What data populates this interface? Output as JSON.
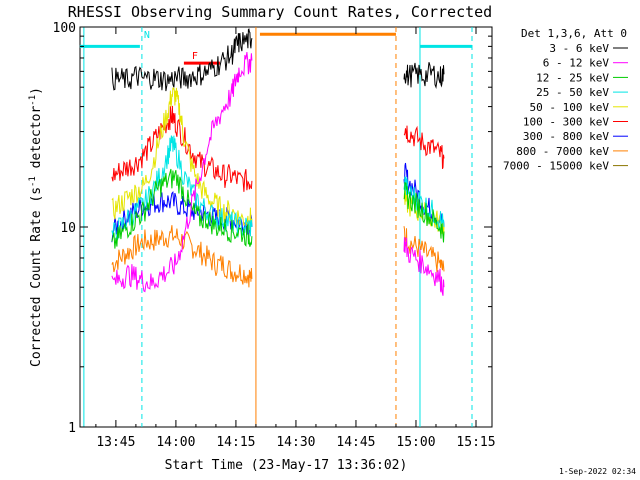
{
  "title": "RHESSI Observing Summary Count Rates, Corrected",
  "timestamp": "1-Sep-2022 02:34",
  "chart_data": {
    "type": "line",
    "title": "RHESSI Observing Summary Count Rates, Corrected",
    "xlabel": "Start Time (23-May-17 13:36:02)",
    "ylabel_parts": [
      "Corrected Count Rate (s",
      "-1",
      " detector",
      "-1",
      ")"
    ],
    "yscale": "log",
    "ylim": [
      1,
      100
    ],
    "xlim_minutes": [
      "13:36:02",
      "15:19:00"
    ],
    "xticks": [
      {
        "label": "13:45",
        "minutes": 45
      },
      {
        "label": "14:00",
        "minutes": 60
      },
      {
        "label": "14:15",
        "minutes": 75
      },
      {
        "label": "14:30",
        "minutes": 90
      },
      {
        "label": "14:45",
        "minutes": 105
      },
      {
        "label": "15:00",
        "minutes": 120
      },
      {
        "label": "15:15",
        "minutes": 135
      }
    ],
    "yticks": [
      {
        "label": "1",
        "value": 1
      },
      {
        "label": "10",
        "value": 10
      },
      {
        "label": "100",
        "value": 100
      }
    ],
    "legend_header": "Det 1,3,6, Att 0",
    "legend_position": "right, outside plot",
    "series": [
      {
        "name": "3 - 6 keV",
        "color": "#000000",
        "points": [
          [
            44,
            55
          ],
          [
            46,
            55
          ],
          [
            48,
            54
          ],
          [
            50,
            57
          ],
          [
            52,
            55
          ],
          [
            54,
            56
          ],
          [
            56,
            55
          ],
          [
            58,
            54
          ],
          [
            60,
            56
          ],
          [
            62,
            55
          ],
          [
            64,
            57
          ],
          [
            66,
            58
          ],
          [
            68,
            60
          ],
          [
            70,
            64
          ],
          [
            72,
            68
          ],
          [
            74,
            73
          ],
          [
            75,
            80
          ],
          [
            76,
            84
          ],
          [
            78,
            86
          ],
          [
            79,
            88
          ]
        ],
        "segments2": [
          [
            [
              117,
              60
            ],
            [
              118,
              57
            ],
            [
              120,
              58
            ],
            [
              122,
              57
            ],
            [
              124,
              59
            ],
            [
              126,
              56
            ],
            [
              127,
              58
            ]
          ]
        ]
      },
      {
        "name": "6 - 12 keV",
        "color": "#ff00ff",
        "points": [
          [
            44,
            5.2
          ],
          [
            46,
            5.5
          ],
          [
            48,
            5.8
          ],
          [
            50,
            5.6
          ],
          [
            52,
            5.4
          ],
          [
            54,
            5.2
          ],
          [
            56,
            5.7
          ],
          [
            58,
            6.0
          ],
          [
            60,
            6.5
          ],
          [
            62,
            9
          ],
          [
            64,
            13
          ],
          [
            66,
            18
          ],
          [
            68,
            26
          ],
          [
            70,
            33
          ],
          [
            72,
            40
          ],
          [
            74,
            46
          ],
          [
            75,
            55
          ],
          [
            76,
            62
          ],
          [
            78,
            66
          ],
          [
            79,
            68
          ]
        ],
        "segments2": [
          [
            [
              117,
              8.5
            ],
            [
              118,
              7.5
            ],
            [
              120,
              7.0
            ],
            [
              122,
              6.5
            ],
            [
              124,
              6.0
            ],
            [
              126,
              5.5
            ],
            [
              127,
              5.0
            ]
          ]
        ]
      },
      {
        "name": "12 - 25 keV",
        "color": "#00cc00",
        "points": [
          [
            44,
            8
          ],
          [
            46,
            9
          ],
          [
            48,
            10
          ],
          [
            50,
            11
          ],
          [
            52,
            12
          ],
          [
            54,
            14
          ],
          [
            56,
            16
          ],
          [
            58,
            17
          ],
          [
            60,
            18
          ],
          [
            62,
            15
          ],
          [
            64,
            12
          ],
          [
            66,
            11
          ],
          [
            68,
            11
          ],
          [
            70,
            10
          ],
          [
            72,
            10
          ],
          [
            74,
            9.5
          ],
          [
            76,
            9.5
          ],
          [
            78,
            9
          ],
          [
            79,
            9
          ]
        ],
        "segments2": [
          [
            [
              117,
              15
            ],
            [
              118,
              14
            ],
            [
              120,
              13
            ],
            [
              122,
              12
            ],
            [
              124,
              11
            ],
            [
              126,
              10
            ],
            [
              127,
              9.5
            ]
          ]
        ]
      },
      {
        "name": "25 - 50 keV",
        "color": "#00e5e5",
        "points": [
          [
            44,
            9
          ],
          [
            46,
            10
          ],
          [
            48,
            11
          ],
          [
            50,
            12
          ],
          [
            52,
            13
          ],
          [
            54,
            15
          ],
          [
            56,
            18
          ],
          [
            58,
            23
          ],
          [
            59,
            26
          ],
          [
            60,
            24
          ],
          [
            62,
            18
          ],
          [
            64,
            15
          ],
          [
            66,
            13
          ],
          [
            68,
            12
          ],
          [
            70,
            11
          ],
          [
            72,
            11
          ],
          [
            74,
            10.5
          ],
          [
            76,
            10
          ],
          [
            78,
            10
          ],
          [
            79,
            10
          ]
        ],
        "segments2": [
          [
            [
              117,
              17
            ],
            [
              118,
              15
            ],
            [
              120,
              14
            ],
            [
              122,
              13
            ],
            [
              124,
              12
            ],
            [
              126,
              11
            ],
            [
              127,
              10
            ]
          ]
        ]
      },
      {
        "name": "50 - 100 keV",
        "color": "#e5e500",
        "points": [
          [
            44,
            12
          ],
          [
            46,
            13
          ],
          [
            48,
            14
          ],
          [
            50,
            15
          ],
          [
            52,
            16
          ],
          [
            54,
            20
          ],
          [
            56,
            28
          ],
          [
            58,
            38
          ],
          [
            59,
            46
          ],
          [
            60,
            45
          ],
          [
            61,
            38
          ],
          [
            62,
            28
          ],
          [
            64,
            20
          ],
          [
            66,
            16
          ],
          [
            68,
            14
          ],
          [
            70,
            13
          ],
          [
            72,
            12
          ],
          [
            74,
            12
          ],
          [
            76,
            11
          ],
          [
            78,
            11
          ],
          [
            79,
            11
          ]
        ],
        "segments2": [
          [
            [
              117,
              14
            ],
            [
              118,
              13
            ],
            [
              120,
              12
            ],
            [
              122,
              12
            ],
            [
              124,
              11
            ],
            [
              126,
              10.5
            ],
            [
              127,
              10
            ]
          ]
        ]
      },
      {
        "name": "100 - 300 keV",
        "color": "#ff0000",
        "points": [
          [
            44,
            18
          ],
          [
            46,
            19
          ],
          [
            48,
            20
          ],
          [
            50,
            21
          ],
          [
            52,
            23
          ],
          [
            54,
            26
          ],
          [
            56,
            30
          ],
          [
            58,
            34
          ],
          [
            59,
            36
          ],
          [
            60,
            33
          ],
          [
            62,
            28
          ],
          [
            64,
            24
          ],
          [
            66,
            21
          ],
          [
            68,
            20
          ],
          [
            70,
            19
          ],
          [
            72,
            18
          ],
          [
            74,
            18
          ],
          [
            76,
            17
          ],
          [
            78,
            17
          ],
          [
            79,
            17
          ]
        ],
        "segments2": [
          [
            [
              117,
              32
            ],
            [
              118,
              30
            ],
            [
              120,
              28
            ],
            [
              122,
              26
            ],
            [
              124,
              25
            ],
            [
              126,
              23
            ],
            [
              127,
              22
            ]
          ]
        ]
      },
      {
        "name": "300 - 800 keV",
        "color": "#0000ff",
        "points": [
          [
            44,
            9.5
          ],
          [
            46,
            10.5
          ],
          [
            48,
            11.5
          ],
          [
            50,
            12
          ],
          [
            52,
            13
          ],
          [
            54,
            13
          ],
          [
            56,
            13.5
          ],
          [
            58,
            13.5
          ],
          [
            60,
            13
          ],
          [
            62,
            12.5
          ],
          [
            64,
            12
          ],
          [
            66,
            12
          ],
          [
            68,
            11.5
          ],
          [
            70,
            11
          ],
          [
            72,
            11
          ],
          [
            74,
            11
          ],
          [
            76,
            10.5
          ],
          [
            78,
            10.5
          ],
          [
            79,
            10
          ]
        ],
        "segments2": [
          [
            [
              117,
              19
            ],
            [
              118,
              17
            ],
            [
              120,
              15
            ],
            [
              122,
              13
            ],
            [
              124,
              12
            ],
            [
              126,
              11
            ],
            [
              127,
              10
            ]
          ]
        ]
      },
      {
        "name": "800 - 7000 keV",
        "color": "#ff8000",
        "points": [
          [
            44,
            6.5
          ],
          [
            46,
            7
          ],
          [
            48,
            7.5
          ],
          [
            50,
            8
          ],
          [
            52,
            8.5
          ],
          [
            54,
            8.5
          ],
          [
            56,
            8.8
          ],
          [
            58,
            9
          ],
          [
            60,
            9
          ],
          [
            62,
            8.5
          ],
          [
            64,
            8
          ],
          [
            66,
            7.5
          ],
          [
            68,
            7
          ],
          [
            70,
            6.5
          ],
          [
            72,
            6.5
          ],
          [
            74,
            6
          ],
          [
            76,
            6
          ],
          [
            78,
            5.8
          ],
          [
            79,
            5.5
          ]
        ],
        "segments2": [
          [
            [
              117,
              9.5
            ],
            [
              118,
              8.5
            ],
            [
              120,
              8
            ],
            [
              122,
              7.5
            ],
            [
              124,
              7
            ],
            [
              126,
              6.5
            ],
            [
              127,
              6
            ]
          ]
        ]
      },
      {
        "name": "7000 - 15000 keV",
        "color": "#8b7500",
        "points": [],
        "segments2": []
      }
    ],
    "annotations": [
      {
        "text": "N",
        "color": "#00e5e5",
        "minutes": 52,
        "value": 88
      },
      {
        "text": "F",
        "color": "#ff0000",
        "minutes": 64,
        "value": 69
      }
    ],
    "flags": [
      {
        "label": "night",
        "color": "#00e5e5",
        "from": 36,
        "to": 51,
        "level": 80
      },
      {
        "label": "night",
        "color": "#00e5e5",
        "from": 121,
        "to": 134,
        "level": 80
      },
      {
        "label": "flare",
        "color": "#ff0000",
        "from": 62,
        "to": 71,
        "level": 66
      },
      {
        "label": "saa",
        "color": "#ff8000",
        "from": 81,
        "to": 115,
        "level": 92
      }
    ],
    "vertical_lines": [
      {
        "minutes": 37,
        "color": "#00e5e5",
        "style": "solid"
      },
      {
        "minutes": 51.5,
        "color": "#00e5e5",
        "style": "dashed"
      },
      {
        "minutes": 80,
        "color": "#ff8000",
        "style": "solid"
      },
      {
        "minutes": 115,
        "color": "#ff8000",
        "style": "dashed"
      },
      {
        "minutes": 121,
        "color": "#00e5e5",
        "style": "solid"
      },
      {
        "minutes": 134,
        "color": "#00e5e5",
        "style": "dashed"
      }
    ]
  }
}
